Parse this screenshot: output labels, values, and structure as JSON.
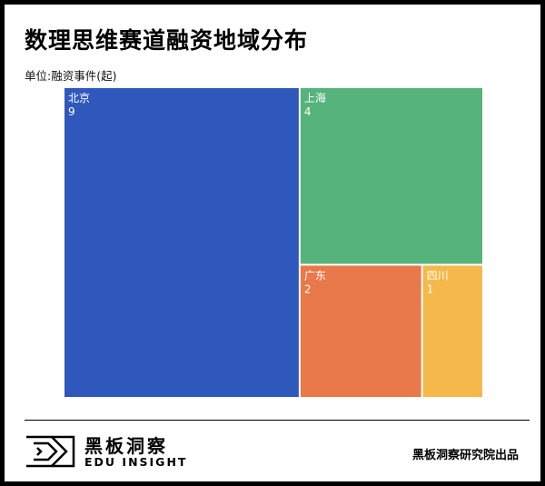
{
  "title": "数理思维赛道融资地域分布",
  "unit_label": "单位:融资事件(起)",
  "chart_data": {
    "type": "treemap",
    "title": "数理思维赛道融资地域分布",
    "unit": "融资事件(起)",
    "items": [
      {
        "name": "北京",
        "value": 9,
        "color": "#2f58bd"
      },
      {
        "name": "上海",
        "value": 4,
        "color": "#57b37c"
      },
      {
        "name": "广东",
        "value": 2,
        "color": "#e9784a"
      },
      {
        "name": "四川",
        "value": 1,
        "color": "#f4b84b"
      }
    ]
  },
  "footer": {
    "logo_name": "黑板洞察",
    "logo_sub": "EDU INSIGHT",
    "credit": "黑板洞察研究院出品",
    "logo_icon": "edu-insight-logo-icon"
  }
}
